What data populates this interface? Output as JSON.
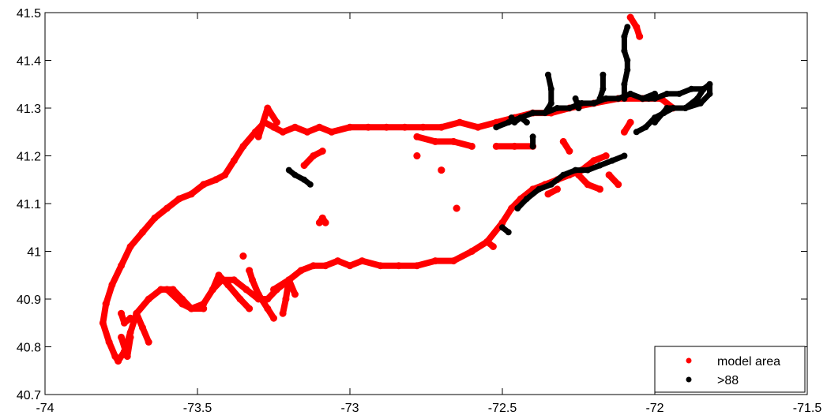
{
  "chart_data": {
    "type": "scatter",
    "title": "",
    "xlabel": "",
    "ylabel": "",
    "xlim": [
      -74,
      -71.5
    ],
    "ylim": [
      40.7,
      41.5
    ],
    "x_ticks": [
      -74,
      -73.5,
      -73,
      -72.5,
      -72,
      -71.5
    ],
    "x_tick_labels": [
      "-74",
      "-73.5",
      "-73",
      "-72.5",
      "-72",
      "-71.5"
    ],
    "y_ticks": [
      40.7,
      40.8,
      40.9,
      41,
      41.1,
      41.2,
      41.3,
      41.4,
      41.5
    ],
    "y_tick_labels": [
      "40.7",
      "40.8",
      "40.9",
      "41",
      "41.1",
      "41.2",
      "41.3",
      "41.4",
      "41.5"
    ],
    "grid": false,
    "legend_position": "bottom-right",
    "series": [
      {
        "name": "model area",
        "color": "#ff0000",
        "traces": [
          [
            [
              -73.8,
              40.89
            ],
            [
              -73.81,
              40.85
            ],
            [
              -73.79,
              40.81
            ],
            [
              -73.77,
              40.78
            ],
            [
              -73.76,
              40.77
            ],
            [
              -73.74,
              40.79
            ],
            [
              -73.72,
              40.83
            ],
            [
              -73.7,
              40.87
            ],
            [
              -73.66,
              40.9
            ],
            [
              -73.62,
              40.92
            ],
            [
              -73.58,
              40.92
            ],
            [
              -73.55,
              40.9
            ],
            [
              -73.52,
              40.88
            ],
            [
              -73.48,
              40.89
            ],
            [
              -73.45,
              40.92
            ],
            [
              -73.42,
              40.94
            ],
            [
              -73.38,
              40.94
            ],
            [
              -73.34,
              40.92
            ],
            [
              -73.3,
              40.9
            ],
            [
              -73.27,
              40.9
            ],
            [
              -73.24,
              40.92
            ],
            [
              -73.2,
              40.94
            ],
            [
              -73.16,
              40.96
            ],
            [
              -73.12,
              40.97
            ],
            [
              -73.08,
              40.97
            ],
            [
              -73.04,
              40.98
            ],
            [
              -73,
              40.97
            ],
            [
              -72.96,
              40.98
            ],
            [
              -72.9,
              40.97
            ],
            [
              -72.84,
              40.97
            ],
            [
              -72.78,
              40.97
            ],
            [
              -72.72,
              40.98
            ],
            [
              -72.66,
              40.98
            ],
            [
              -72.6,
              41
            ],
            [
              -72.55,
              41.02
            ],
            [
              -72.5,
              41.06
            ],
            [
              -72.47,
              41.09
            ],
            [
              -72.44,
              41.11
            ],
            [
              -72.4,
              41.13
            ],
            [
              -72.36,
              41.14
            ],
            [
              -72.32,
              41.15
            ],
            [
              -72.28,
              41.16
            ],
            [
              -72.24,
              41.17
            ],
            [
              -72.2,
              41.19
            ],
            [
              -72.16,
              41.2
            ]
          ],
          [
            [
              -73.8,
              40.89
            ],
            [
              -73.78,
              40.93
            ],
            [
              -73.75,
              40.97
            ],
            [
              -73.72,
              41.01
            ],
            [
              -73.68,
              41.04
            ],
            [
              -73.64,
              41.07
            ],
            [
              -73.6,
              41.09
            ],
            [
              -73.56,
              41.11
            ],
            [
              -73.52,
              41.12
            ],
            [
              -73.48,
              41.14
            ],
            [
              -73.44,
              41.15
            ],
            [
              -73.41,
              41.16
            ],
            [
              -73.38,
              41.19
            ],
            [
              -73.35,
              41.22
            ],
            [
              -73.31,
              41.25
            ],
            [
              -73.28,
              41.27
            ],
            [
              -73.25,
              41.26
            ],
            [
              -73.22,
              41.25
            ],
            [
              -73.18,
              41.26
            ],
            [
              -73.14,
              41.25
            ],
            [
              -73.1,
              41.26
            ],
            [
              -73.06,
              41.25
            ],
            [
              -73,
              41.26
            ],
            [
              -72.94,
              41.26
            ],
            [
              -72.88,
              41.26
            ],
            [
              -72.82,
              41.26
            ],
            [
              -72.76,
              41.26
            ],
            [
              -72.7,
              41.26
            ],
            [
              -72.64,
              41.27
            ],
            [
              -72.58,
              41.26
            ],
            [
              -72.52,
              41.27
            ],
            [
              -72.46,
              41.28
            ],
            [
              -72.4,
              41.29
            ],
            [
              -72.34,
              41.29
            ],
            [
              -72.28,
              41.3
            ],
            [
              -72.2,
              41.31
            ],
            [
              -72.12,
              41.32
            ],
            [
              -72.04,
              41.32
            ],
            [
              -71.98,
              41.32
            ],
            [
              -71.94,
              41.3
            ]
          ],
          [
            [
              -73.3,
              41.24
            ],
            [
              -73.27,
              41.3
            ],
            [
              -73.24,
              41.27
            ]
          ],
          [
            [
              -73.15,
              41.18
            ],
            [
              -73.12,
              41.2
            ],
            [
              -73.09,
              41.21
            ]
          ],
          [
            [
              -73.75,
              40.82
            ],
            [
              -73.73,
              40.78
            ],
            [
              -73.72,
              40.82
            ]
          ],
          [
            [
              -73.75,
              40.87
            ],
            [
              -73.74,
              40.85
            ],
            [
              -73.72,
              40.86
            ]
          ],
          [
            [
              -73.7,
              40.87
            ],
            [
              -73.68,
              40.84
            ],
            [
              -73.66,
              40.81
            ]
          ],
          [
            [
              -73.6,
              40.92
            ],
            [
              -73.55,
              40.89
            ],
            [
              -73.52,
              40.88
            ],
            [
              -73.48,
              40.88
            ]
          ],
          [
            [
              -73.45,
              40.92
            ],
            [
              -73.43,
              40.95
            ],
            [
              -73.4,
              40.93
            ],
            [
              -73.36,
              40.9
            ],
            [
              -73.33,
              40.88
            ]
          ],
          [
            [
              -73.33,
              40.96
            ],
            [
              -73.32,
              40.94
            ],
            [
              -73.3,
              40.91
            ],
            [
              -73.27,
              40.88
            ],
            [
              -73.25,
              40.86
            ]
          ],
          [
            [
              -73.25,
              40.92
            ],
            [
              -73.2,
              40.94
            ],
            [
              -73.18,
              40.91
            ]
          ],
          [
            [
              -73.2,
              40.94
            ],
            [
              -73.21,
              40.9
            ],
            [
              -73.22,
              40.87
            ]
          ],
          [
            [
              -73.1,
              41.06
            ],
            [
              -73.09,
              41.07
            ],
            [
              -73.08,
              41.06
            ]
          ],
          [
            [
              -73.35,
              40.99
            ],
            [
              -73.35,
              40.99
            ]
          ],
          [
            [
              -72.78,
              41.24
            ],
            [
              -72.72,
              41.23
            ],
            [
              -72.66,
              41.23
            ],
            [
              -72.6,
              41.22
            ]
          ],
          [
            [
              -72.78,
              41.2
            ],
            [
              -72.78,
              41.2
            ]
          ],
          [
            [
              -72.7,
              41.17
            ],
            [
              -72.7,
              41.17
            ]
          ],
          [
            [
              -72.65,
              41.09
            ],
            [
              -72.65,
              41.09
            ]
          ],
          [
            [
              -72.55,
              41.02
            ],
            [
              -72.53,
              41.01
            ]
          ],
          [
            [
              -72.52,
              41.22
            ],
            [
              -72.46,
              41.22
            ],
            [
              -72.4,
              41.22
            ]
          ],
          [
            [
              -72.3,
              41.23
            ],
            [
              -72.28,
              41.21
            ]
          ],
          [
            [
              -72.1,
              41.25
            ],
            [
              -72.08,
              41.27
            ]
          ],
          [
            [
              -72.05,
              41.45
            ],
            [
              -72.06,
              41.47
            ],
            [
              -72.08,
              41.49
            ]
          ],
          [
            [
              -72.25,
              41.16
            ],
            [
              -72.22,
              41.14
            ],
            [
              -72.18,
              41.13
            ]
          ],
          [
            [
              -72.35,
              41.12
            ],
            [
              -72.32,
              41.13
            ]
          ],
          [
            [
              -72.15,
              41.16
            ],
            [
              -72.12,
              41.14
            ]
          ]
        ]
      },
      {
        "name": ">88",
        "color": "#000000",
        "traces": [
          [
            [
              -72.52,
              41.26
            ],
            [
              -72.48,
              41.27
            ],
            [
              -72.44,
              41.28
            ],
            [
              -72.4,
              41.29
            ],
            [
              -72.36,
              41.29
            ],
            [
              -72.32,
              41.3
            ],
            [
              -72.28,
              41.3
            ],
            [
              -72.24,
              41.31
            ],
            [
              -72.2,
              41.31
            ],
            [
              -72.16,
              41.32
            ],
            [
              -72.12,
              41.32
            ],
            [
              -72.08,
              41.33
            ],
            [
              -72.04,
              41.32
            ],
            [
              -72,
              41.32
            ],
            [
              -71.96,
              41.33
            ],
            [
              -71.92,
              41.33
            ],
            [
              -71.88,
              41.34
            ],
            [
              -71.84,
              41.34
            ],
            [
              -71.82,
              41.35
            ],
            [
              -71.82,
              41.33
            ],
            [
              -71.85,
              41.31
            ],
            [
              -71.9,
              41.3
            ],
            [
              -71.94,
              41.3
            ],
            [
              -71.97,
              41.29
            ],
            [
              -72,
              41.28
            ],
            [
              -72.03,
              41.26
            ],
            [
              -72.06,
              41.25
            ]
          ],
          [
            [
              -72.36,
              41.29
            ],
            [
              -72.34,
              41.31
            ],
            [
              -72.34,
              41.34
            ],
            [
              -72.35,
              41.37
            ]
          ],
          [
            [
              -72.25,
              41.31
            ],
            [
              -72.25,
              41.3
            ],
            [
              -72.26,
              41.32
            ]
          ],
          [
            [
              -72.18,
              41.32
            ],
            [
              -72.17,
              41.34
            ],
            [
              -72.17,
              41.37
            ]
          ],
          [
            [
              -72.1,
              41.32
            ],
            [
              -72.1,
              41.35
            ],
            [
              -72.09,
              41.38
            ],
            [
              -72.09,
              41.4
            ],
            [
              -72.1,
              41.42
            ],
            [
              -72.1,
              41.45
            ],
            [
              -72.09,
              41.47
            ]
          ],
          [
            [
              -72.02,
              41.32
            ],
            [
              -72.04,
              41.32
            ],
            [
              -72,
              41.33
            ]
          ],
          [
            [
              -72,
              41.27
            ],
            [
              -71.96,
              41.3
            ],
            [
              -71.9,
              41.3
            ],
            [
              -71.86,
              41.32
            ],
            [
              -71.84,
              41.34
            ]
          ],
          [
            [
              -72.47,
              41.28
            ],
            [
              -72.46,
              41.27
            ],
            [
              -72.44,
              41.28
            ],
            [
              -72.42,
              41.27
            ]
          ],
          [
            [
              -72.45,
              41.09
            ],
            [
              -72.42,
              41.11
            ],
            [
              -72.38,
              41.13
            ],
            [
              -72.34,
              41.14
            ],
            [
              -72.3,
              41.16
            ],
            [
              -72.26,
              41.17
            ],
            [
              -72.22,
              41.17
            ],
            [
              -72.18,
              41.18
            ],
            [
              -72.14,
              41.19
            ],
            [
              -72.1,
              41.2
            ]
          ],
          [
            [
              -72.5,
              41.05
            ],
            [
              -72.48,
              41.04
            ]
          ],
          [
            [
              -73.2,
              41.17
            ],
            [
              -73.18,
              41.16
            ],
            [
              -73.15,
              41.15
            ],
            [
              -73.13,
              41.14
            ]
          ],
          [
            [
              -72.4,
              41.24
            ],
            [
              -72.4,
              41.22
            ]
          ]
        ]
      }
    ]
  }
}
